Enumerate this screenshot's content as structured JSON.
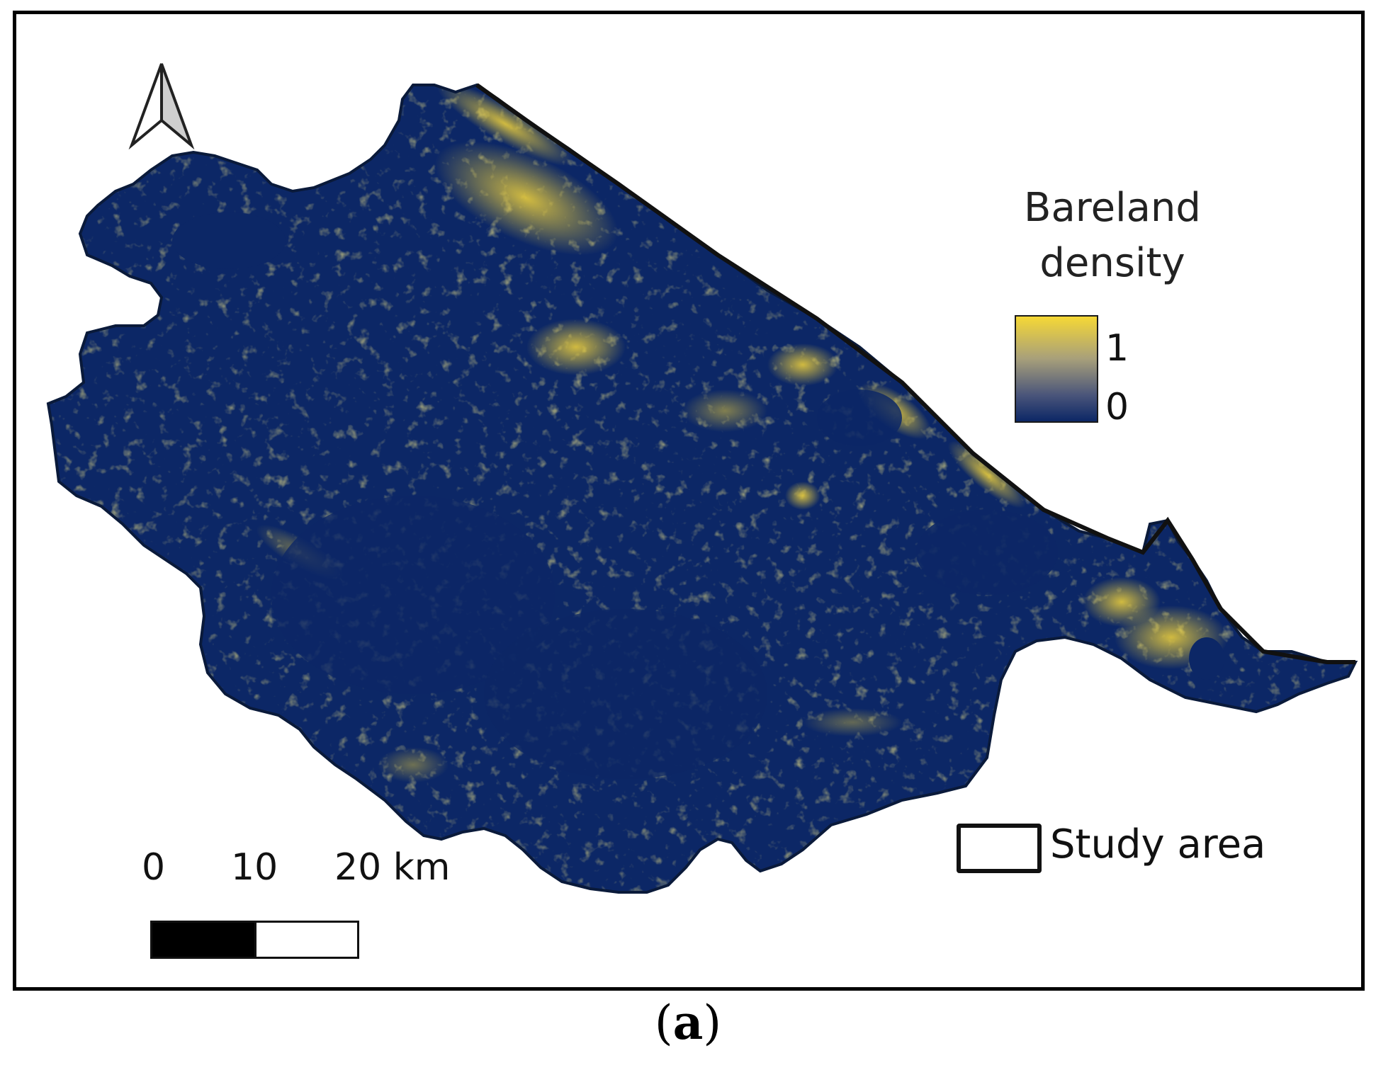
{
  "legend": {
    "title_line1": "Bareland",
    "title_line2": "density",
    "max_label": "1",
    "min_label": "0",
    "color_high": "#f6d835",
    "color_low": "#0c2766"
  },
  "scale_bar": {
    "labels": [
      "0",
      "10",
      "20 km"
    ]
  },
  "study_area_label": "Study area",
  "north_arrow_icon": "north-arrow-icon",
  "map_fill_color": "#0c2766",
  "caption": {
    "open": "(",
    "letter": "a",
    "close": ")"
  }
}
